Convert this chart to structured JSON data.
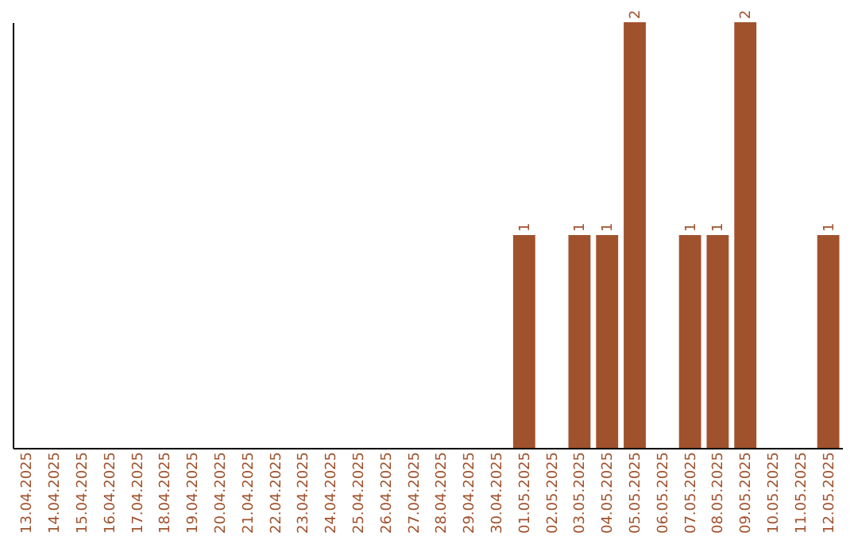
{
  "chart_data": {
    "type": "bar",
    "categories": [
      "13.04.2025",
      "14.04.2025",
      "15.04.2025",
      "16.04.2025",
      "17.04.2025",
      "18.04.2025",
      "19.04.2025",
      "20.04.2025",
      "21.04.2025",
      "22.04.2025",
      "23.04.2025",
      "24.04.2025",
      "25.04.2025",
      "26.04.2025",
      "27.04.2025",
      "28.04.2025",
      "29.04.2025",
      "30.04.2025",
      "01.05.2025",
      "02.05.2025",
      "03.05.2025",
      "04.05.2025",
      "05.05.2025",
      "06.05.2025",
      "07.05.2025",
      "08.05.2025",
      "09.05.2025",
      "10.05.2025",
      "11.05.2025",
      "12.05.2025"
    ],
    "values": [
      null,
      null,
      null,
      null,
      null,
      null,
      null,
      null,
      null,
      null,
      null,
      null,
      null,
      null,
      null,
      null,
      null,
      null,
      1,
      null,
      1,
      1,
      2,
      null,
      1,
      1,
      2,
      null,
      null,
      1
    ],
    "data_labels": true,
    "color": "#a0522d",
    "tick_labels": "x"
  }
}
